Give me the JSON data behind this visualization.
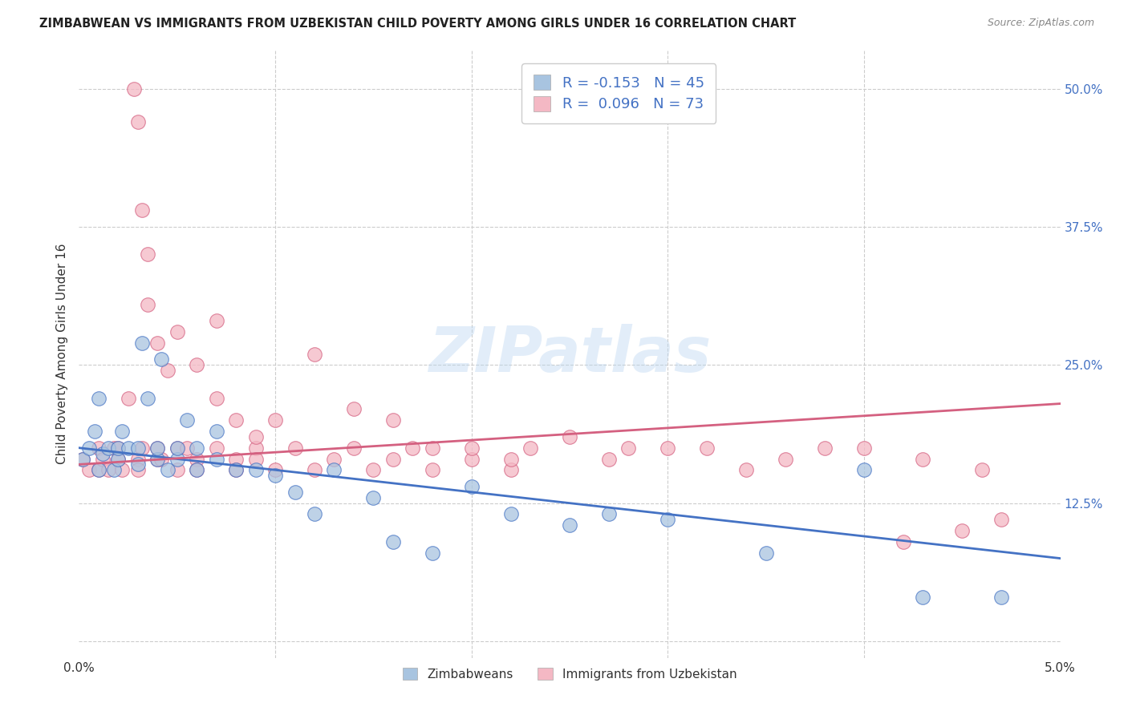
{
  "title": "ZIMBABWEAN VS IMMIGRANTS FROM UZBEKISTAN CHILD POVERTY AMONG GIRLS UNDER 16 CORRELATION CHART",
  "source": "Source: ZipAtlas.com",
  "ylabel": "Child Poverty Among Girls Under 16",
  "color_blue": "#a8c4e0",
  "color_pink": "#f4b8c4",
  "line_blue": "#4472c4",
  "line_pink": "#d46080",
  "watermark": "ZIPatlas",
  "xlim": [
    0.0,
    0.05
  ],
  "ylim": [
    -0.015,
    0.535
  ],
  "blue_scatter_x": [
    0.0002,
    0.0005,
    0.0008,
    0.001,
    0.001,
    0.0012,
    0.0015,
    0.0018,
    0.002,
    0.002,
    0.0022,
    0.0025,
    0.003,
    0.003,
    0.0032,
    0.0035,
    0.004,
    0.004,
    0.0042,
    0.0045,
    0.005,
    0.005,
    0.0055,
    0.006,
    0.006,
    0.007,
    0.007,
    0.008,
    0.009,
    0.01,
    0.011,
    0.012,
    0.013,
    0.015,
    0.016,
    0.018,
    0.02,
    0.022,
    0.025,
    0.027,
    0.03,
    0.035,
    0.04,
    0.043,
    0.047
  ],
  "blue_scatter_y": [
    0.165,
    0.175,
    0.19,
    0.22,
    0.155,
    0.17,
    0.175,
    0.155,
    0.165,
    0.175,
    0.19,
    0.175,
    0.175,
    0.16,
    0.27,
    0.22,
    0.165,
    0.175,
    0.255,
    0.155,
    0.165,
    0.175,
    0.2,
    0.175,
    0.155,
    0.19,
    0.165,
    0.155,
    0.155,
    0.15,
    0.135,
    0.115,
    0.155,
    0.13,
    0.09,
    0.08,
    0.14,
    0.115,
    0.105,
    0.115,
    0.11,
    0.08,
    0.155,
    0.04,
    0.04
  ],
  "pink_scatter_x": [
    0.0002,
    0.0005,
    0.001,
    0.001,
    0.0012,
    0.0015,
    0.0018,
    0.002,
    0.002,
    0.0022,
    0.0025,
    0.003,
    0.003,
    0.0032,
    0.0035,
    0.004,
    0.004,
    0.0042,
    0.005,
    0.005,
    0.0055,
    0.006,
    0.006,
    0.007,
    0.007,
    0.008,
    0.008,
    0.009,
    0.009,
    0.01,
    0.011,
    0.012,
    0.013,
    0.014,
    0.015,
    0.016,
    0.017,
    0.018,
    0.02,
    0.022,
    0.023,
    0.025,
    0.027,
    0.028,
    0.03,
    0.032,
    0.034,
    0.036,
    0.038,
    0.04,
    0.042,
    0.043,
    0.045,
    0.046,
    0.047,
    0.0028,
    0.003,
    0.0032,
    0.0035,
    0.004,
    0.0045,
    0.005,
    0.006,
    0.007,
    0.008,
    0.009,
    0.01,
    0.012,
    0.014,
    0.016,
    0.018,
    0.02,
    0.022
  ],
  "pink_scatter_y": [
    0.165,
    0.155,
    0.175,
    0.155,
    0.165,
    0.155,
    0.175,
    0.165,
    0.175,
    0.155,
    0.22,
    0.165,
    0.155,
    0.175,
    0.35,
    0.165,
    0.175,
    0.165,
    0.175,
    0.155,
    0.175,
    0.165,
    0.155,
    0.175,
    0.29,
    0.165,
    0.155,
    0.175,
    0.165,
    0.155,
    0.175,
    0.155,
    0.165,
    0.175,
    0.155,
    0.165,
    0.175,
    0.155,
    0.165,
    0.155,
    0.175,
    0.185,
    0.165,
    0.175,
    0.175,
    0.175,
    0.155,
    0.165,
    0.175,
    0.175,
    0.09,
    0.165,
    0.1,
    0.155,
    0.11,
    0.5,
    0.47,
    0.39,
    0.305,
    0.27,
    0.245,
    0.28,
    0.25,
    0.22,
    0.2,
    0.185,
    0.2,
    0.26,
    0.21,
    0.2,
    0.175,
    0.175,
    0.165
  ],
  "blue_trend_x0": 0.0,
  "blue_trend_x1": 0.05,
  "blue_trend_y0": 0.175,
  "blue_trend_y1": 0.075,
  "pink_trend_x0": 0.0,
  "pink_trend_x1": 0.05,
  "pink_trend_y0": 0.16,
  "pink_trend_y1": 0.215
}
